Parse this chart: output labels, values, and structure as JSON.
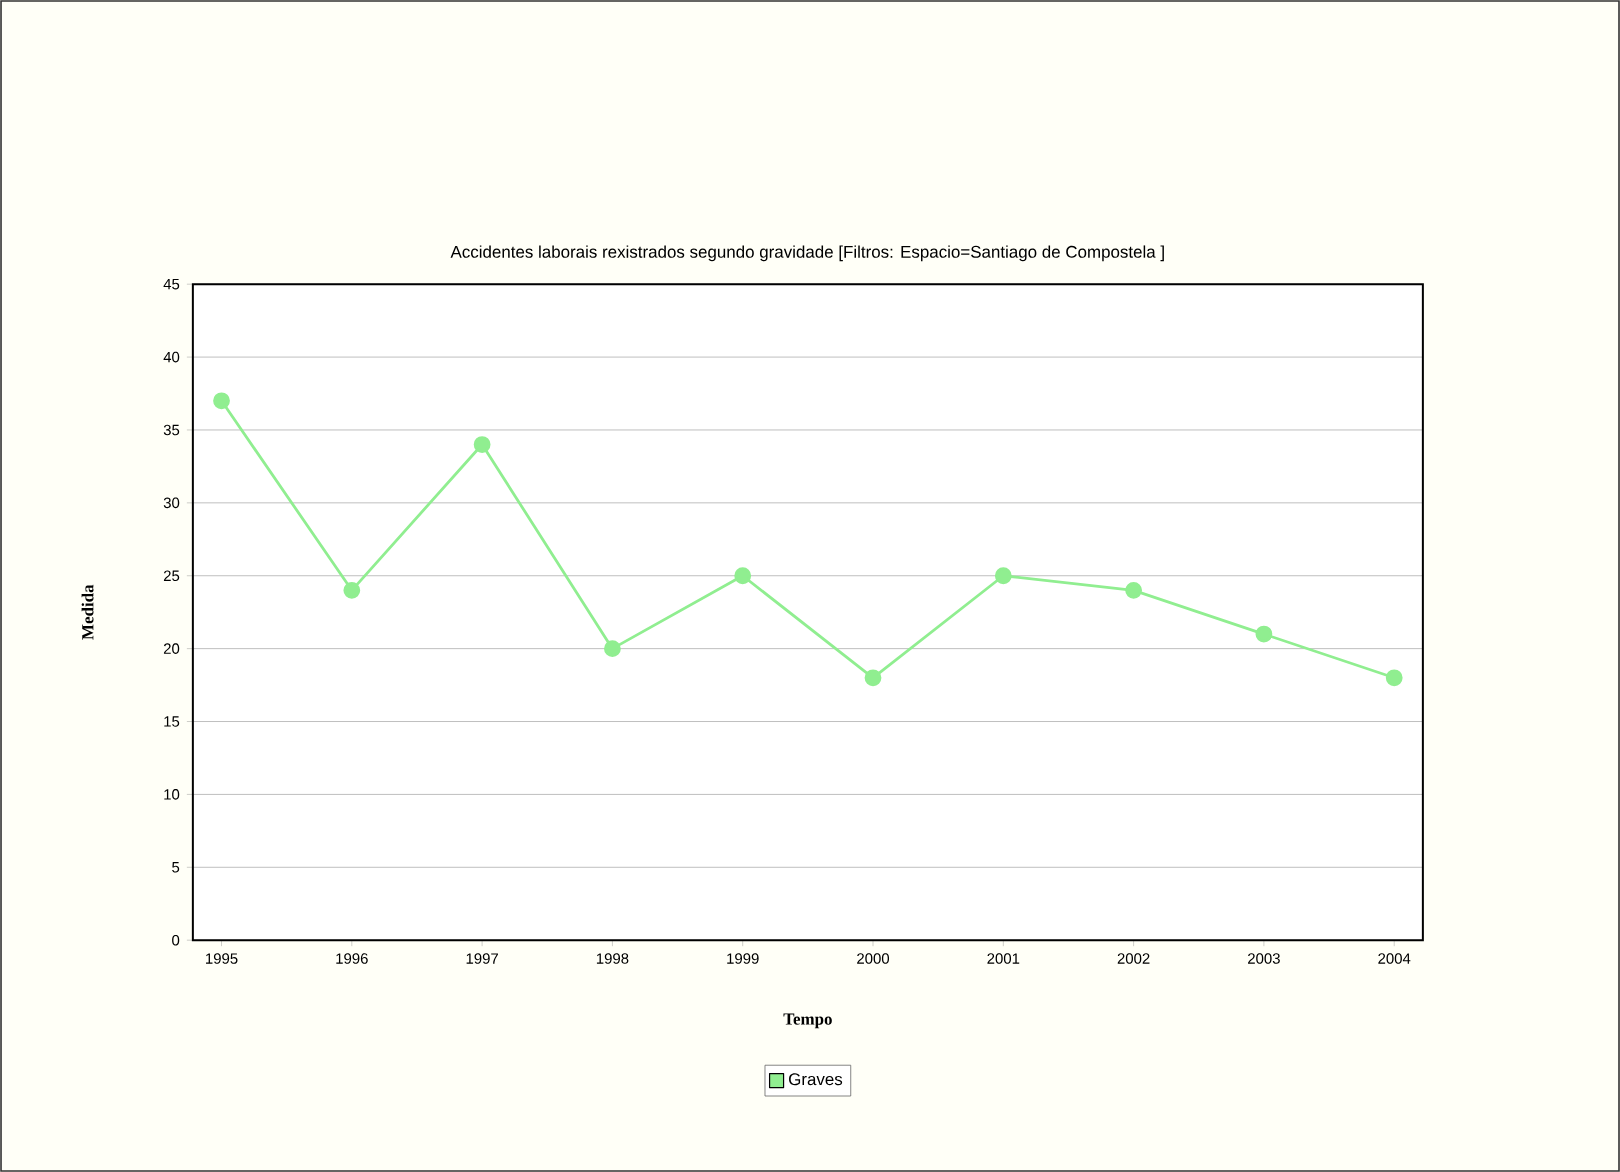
{
  "chart_data": {
    "type": "line",
    "title": "Accidentes laborais rexistrados segundo gravidade   [Filtros: Espacio=Santiago de Compostela ]",
    "xlabel": "Tempo",
    "ylabel": "Medida",
    "categories": [
      "1995",
      "1996",
      "1997",
      "1998",
      "1999",
      "2000",
      "2001",
      "2002",
      "2003",
      "2004"
    ],
    "series": [
      {
        "name": "Graves",
        "color": "#90ee90",
        "values": [
          37,
          24,
          34,
          20,
          25,
          18,
          25,
          24,
          21,
          18
        ]
      }
    ],
    "ylim": [
      0,
      45
    ],
    "yticks": [
      0,
      5,
      10,
      15,
      20,
      25,
      30,
      35,
      40,
      45
    ],
    "grid": "y",
    "legend": "bottom",
    "marker": "circle",
    "line_style": "solid"
  }
}
